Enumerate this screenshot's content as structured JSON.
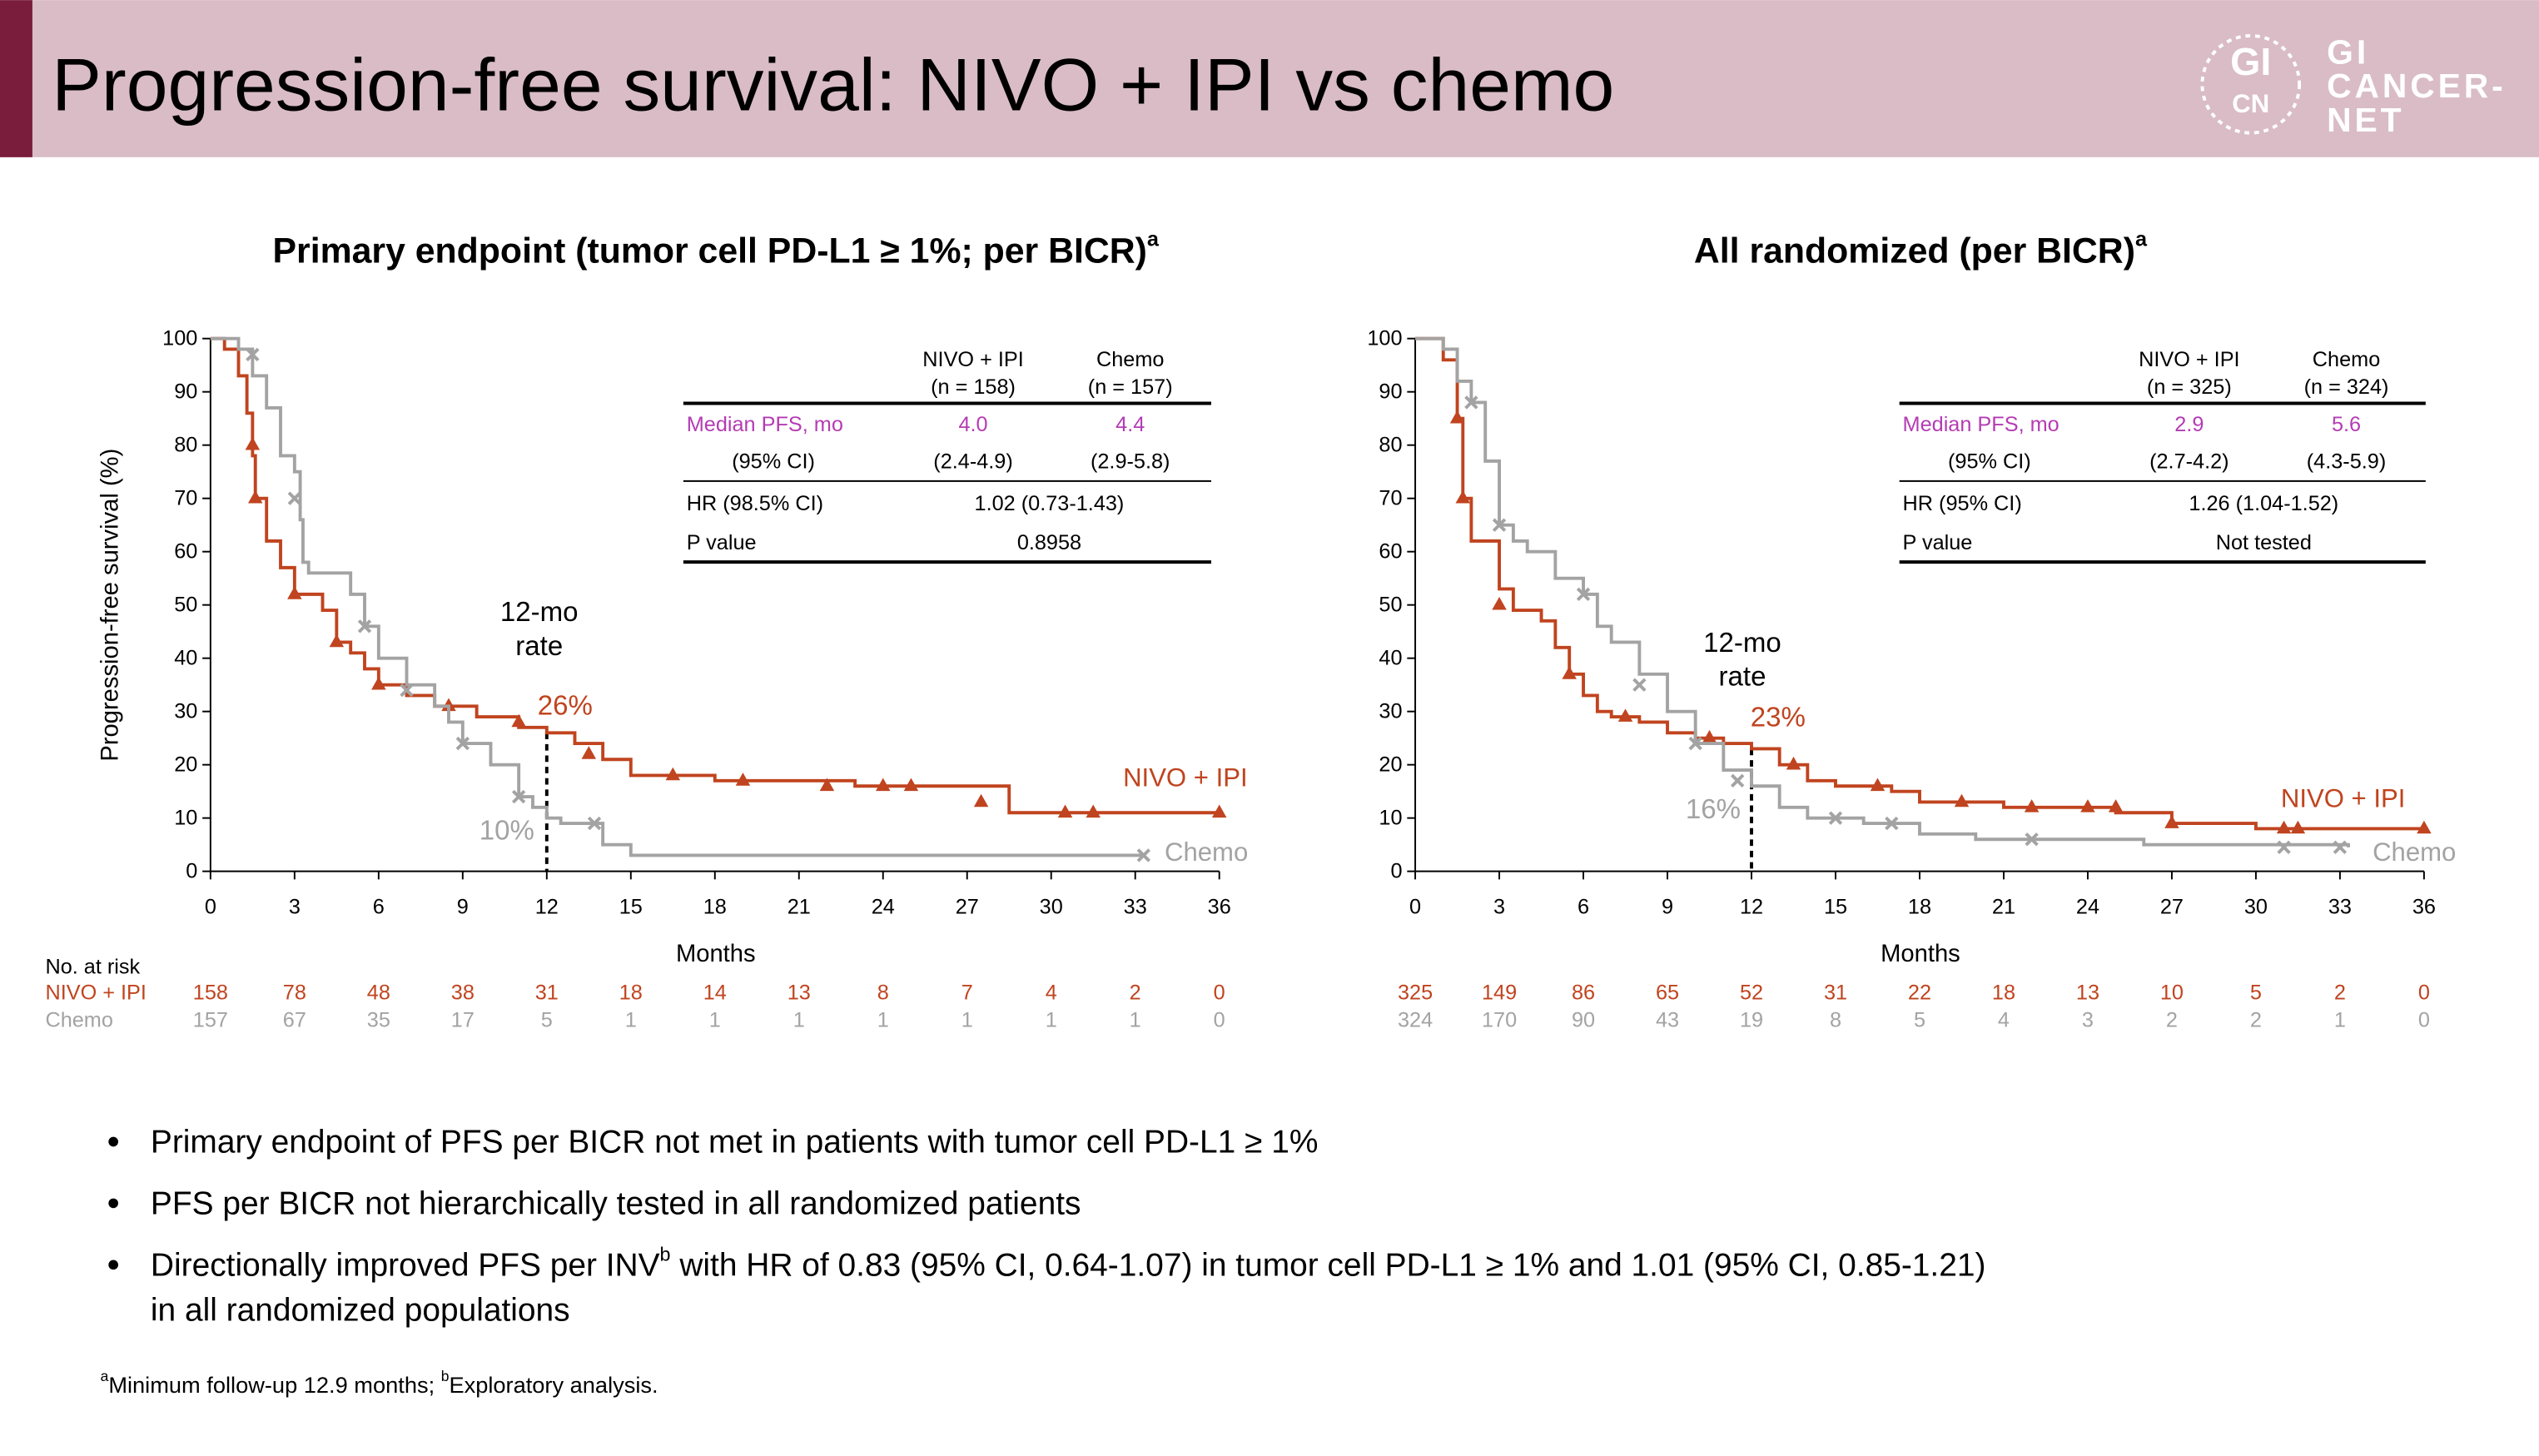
{
  "header": {
    "title": "Progression-free survival: NIVO + IPI vs chemo",
    "logo_mark": [
      "GI",
      "CN"
    ],
    "logo_text": [
      "GI",
      "CANCER-",
      "NET"
    ]
  },
  "chart_data": [
    {
      "type": "line",
      "title": "Primary endpoint (tumor cell PD-L1 ≥ 1%; per BICR)",
      "title_sup": "a",
      "y_label": "Progression-free survival (%)",
      "x_label": "Months",
      "xlim": [
        0,
        36
      ],
      "xticks": [
        0,
        3,
        6,
        9,
        12,
        15,
        18,
        21,
        24,
        27,
        30,
        33,
        36
      ],
      "ylim": [
        0,
        100
      ],
      "yticks": [
        0,
        10,
        20,
        30,
        40,
        50,
        60,
        70,
        80,
        90,
        100
      ],
      "series": [
        {
          "name": "NIVO + IPI",
          "color": "#c0441f",
          "marker": "triangle",
          "x": [
            0,
            0.5,
            1,
            1.3,
            1.5,
            1.6,
            2,
            2.5,
            3,
            4,
            4.5,
            5,
            5.5,
            6,
            7,
            8,
            9.5,
            11,
            12,
            13,
            14,
            15,
            18,
            23,
            28.5,
            36
          ],
          "values": [
            100,
            98,
            93,
            86,
            78,
            70,
            62,
            57,
            52,
            49,
            43,
            41,
            38,
            35,
            33,
            31,
            29,
            27,
            26,
            24,
            21,
            18,
            17,
            16,
            11,
            11
          ],
          "censor_x": [
            1.5,
            1.6,
            3,
            4.5,
            6,
            8.5,
            11,
            13.5,
            16.5,
            19,
            22,
            24,
            25,
            27.5,
            30.5,
            31.5,
            36
          ],
          "censor_values": [
            80,
            70,
            52,
            43,
            35,
            31,
            28,
            22,
            18,
            17,
            16,
            16,
            16,
            13,
            11,
            11,
            11
          ],
          "at_risk": [
            158,
            78,
            48,
            38,
            31,
            18,
            14,
            13,
            8,
            7,
            4,
            2,
            0
          ]
        },
        {
          "name": "Chemo",
          "color": "#a3a3a3",
          "marker": "cross",
          "x": [
            0,
            1,
            1.5,
            2,
            2.5,
            3,
            3.2,
            3.3,
            3.5,
            5,
            5.5,
            6,
            7,
            8,
            8.5,
            9,
            10,
            11,
            11.5,
            12,
            12.5,
            14,
            15,
            33.3
          ],
          "values": [
            100,
            98,
            93,
            87,
            78,
            75,
            66,
            58,
            56,
            52,
            46,
            40,
            35,
            31,
            28,
            24,
            20,
            14,
            12,
            10,
            9,
            5,
            3,
            3
          ],
          "censor_x": [
            1.5,
            3,
            5.5,
            7,
            9,
            11,
            13.7,
            33.3
          ],
          "censor_values": [
            97,
            70,
            46,
            34,
            24,
            14,
            9,
            3
          ],
          "at_risk": [
            157,
            67,
            35,
            17,
            5,
            1,
            1,
            1,
            1,
            1,
            1,
            1,
            0
          ]
        }
      ],
      "rate_note": [
        "12-mo",
        "rate"
      ],
      "rate_x": 12,
      "rate_values": [
        26,
        10
      ],
      "rate_labels": [
        "26%",
        "10%"
      ],
      "risk_title": "No. at risk",
      "table": {
        "columns": [
          [
            "NIVO + IPI",
            "(n = 158)"
          ],
          [
            "Chemo",
            "(n = 157)"
          ]
        ],
        "rows": [
          {
            "label": "Median PFS, mo",
            "cells": [
              "4.0",
              "4.4"
            ]
          },
          {
            "label": "(95% CI)",
            "cells": [
              "(2.4-4.9)",
              "(2.9-5.8)"
            ]
          },
          {
            "label": "HR (98.5% CI)",
            "cells": [
              "1.02 (0.73-1.43)"
            ]
          },
          {
            "label": "P value",
            "cells": [
              "0.8958"
            ]
          }
        ]
      }
    },
    {
      "type": "line",
      "title": "All randomized (per BICR)",
      "title_sup": "a",
      "x_label": "Months",
      "xlim": [
        0,
        36
      ],
      "xticks": [
        0,
        3,
        6,
        9,
        12,
        15,
        18,
        21,
        24,
        27,
        30,
        33,
        36
      ],
      "ylim": [
        0,
        100
      ],
      "yticks": [
        0,
        10,
        20,
        30,
        40,
        50,
        60,
        70,
        80,
        90,
        100
      ],
      "series": [
        {
          "name": "NIVO + IPI",
          "color": "#c0441f",
          "marker": "triangle",
          "x": [
            0,
            1,
            1.5,
            1.7,
            2,
            3,
            3.5,
            4.5,
            5,
            5.5,
            6,
            6.5,
            7,
            8,
            9,
            10,
            11,
            12,
            13,
            14,
            15,
            17,
            18,
            21,
            25,
            27,
            30,
            36
          ],
          "values": [
            100,
            96,
            85,
            70,
            62,
            53,
            49,
            47,
            42,
            37,
            33,
            30,
            29,
            28,
            26,
            25,
            24,
            23,
            20,
            17,
            16,
            15,
            13,
            12,
            11,
            9,
            8,
            8
          ],
          "censor_x": [
            1.5,
            1.7,
            3,
            5.5,
            7.5,
            10.5,
            13.5,
            16.5,
            19.5,
            22,
            24,
            25,
            27,
            31,
            31.5,
            36
          ],
          "censor_values": [
            85,
            70,
            50,
            37,
            29,
            25,
            20,
            16,
            13,
            12,
            12,
            12,
            9,
            8,
            8,
            8
          ],
          "at_risk": [
            325,
            149,
            86,
            65,
            52,
            31,
            22,
            18,
            13,
            10,
            5,
            2,
            0
          ]
        },
        {
          "name": "Chemo",
          "color": "#a3a3a3",
          "marker": "cross",
          "x": [
            0,
            1,
            1.5,
            2,
            2.5,
            3,
            3.5,
            4,
            5,
            6,
            6.5,
            7,
            8,
            9,
            10,
            11,
            12,
            13,
            14,
            16,
            18,
            20,
            26,
            33.3
          ],
          "values": [
            100,
            98,
            92,
            88,
            77,
            65,
            62,
            60,
            55,
            52,
            46,
            43,
            37,
            30,
            24,
            19,
            16,
            12,
            10,
            9,
            7,
            6,
            5,
            4.5
          ],
          "censor_x": [
            2,
            3,
            6,
            8,
            10,
            11.5,
            15,
            17,
            22,
            31,
            33
          ],
          "censor_values": [
            88,
            65,
            52,
            35,
            24,
            17,
            10,
            9,
            6,
            4.5,
            4.5
          ],
          "at_risk": [
            324,
            170,
            90,
            43,
            19,
            8,
            5,
            4,
            3,
            2,
            2,
            1,
            0
          ]
        }
      ],
      "rate_note": [
        "12-mo",
        "rate"
      ],
      "rate_x": 12,
      "rate_values": [
        23,
        16
      ],
      "rate_labels": [
        "23%",
        "16%"
      ],
      "table": {
        "columns": [
          [
            "NIVO + IPI",
            "(n = 325)"
          ],
          [
            "Chemo",
            "(n = 324)"
          ]
        ],
        "rows": [
          {
            "label": "Median PFS, mo",
            "cells": [
              "2.9",
              "5.6"
            ]
          },
          {
            "label": "(95% CI)",
            "cells": [
              "(2.7-4.2)",
              "(4.3-5.9)"
            ]
          },
          {
            "label": "HR (95% CI)",
            "cells": [
              "1.26 (1.04-1.52)"
            ]
          },
          {
            "label": "P value",
            "cells": [
              "Not tested"
            ]
          }
        ]
      }
    }
  ],
  "bullets": [
    {
      "parts": [
        "Primary endpoint of PFS per BICR not met in patients with tumor cell PD-L1 ≥ 1%"
      ]
    },
    {
      "parts": [
        "PFS per BICR not hierarchically tested in all randomized patients"
      ]
    },
    {
      "parts": [
        "Directionally improved PFS per INV",
        "b",
        " with HR of 0.83 (95% CI, 0.64-1.07) in tumor cell PD-L1 ≥ 1% and 1.01 (95% CI, 0.85-1.21)"
      ],
      "line2": "in all randomized populations"
    }
  ],
  "footnote": [
    "a",
    "Minimum follow-up 12.9 months; ",
    "b",
    "Exploratory analysis."
  ]
}
